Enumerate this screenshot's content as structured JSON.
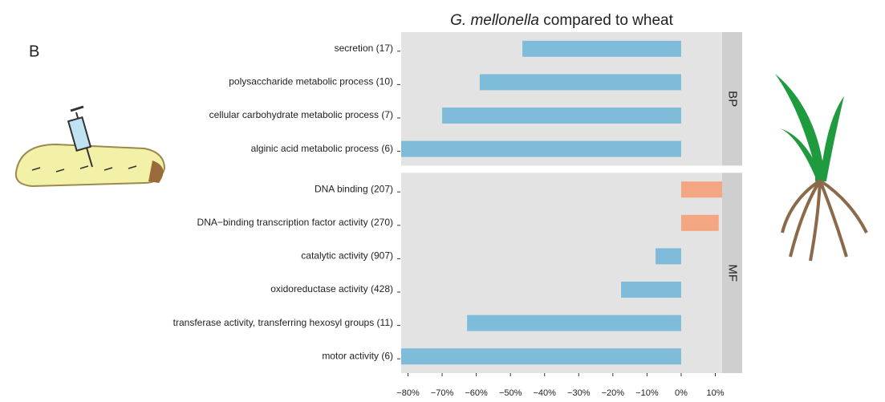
{
  "chart_data": {
    "type": "bar",
    "orientation": "horizontal",
    "title_italic": "G. mellonella",
    "title": "compared to wheat",
    "panel_label": "B",
    "colors": {
      "negative": "#7fbcd9",
      "positive": "#f4a582"
    },
    "panel_color": "#e3e3e3",
    "strip_color": "#cfcfcf",
    "xlim": [
      -82,
      12
    ],
    "xticks": [
      {
        "value": -80,
        "label": "−80%"
      },
      {
        "value": -70,
        "label": "−70%"
      },
      {
        "value": -60,
        "label": "−60%"
      },
      {
        "value": -50,
        "label": "−50%"
      },
      {
        "value": -40,
        "label": "−40%"
      },
      {
        "value": -30,
        "label": "−30%"
      },
      {
        "value": -20,
        "label": "−20%"
      },
      {
        "value": -10,
        "label": "−10%"
      },
      {
        "value": 0,
        "label": "0%"
      },
      {
        "value": 10,
        "label": "10%"
      }
    ],
    "facets": [
      {
        "name": "BP",
        "categories": [
          "secretion (17)",
          "polysaccharide metabolic process (10)",
          "cellular carbohydrate metabolic process (7)",
          "alginic acid metabolic process (6)"
        ],
        "values": [
          -46.5,
          -59,
          -70,
          -82
        ]
      },
      {
        "name": "MF",
        "categories": [
          "DNA binding (207)",
          "DNA−binding transcription factor activity (270)",
          "catalytic activity (907)",
          "oxidoreductase activity (428)",
          "transferase activity, transferring hexosyl groups (11)",
          "motor activity (6)"
        ],
        "values": [
          12,
          11,
          -7.5,
          -17.6,
          -62.7,
          -82
        ]
      }
    ]
  }
}
